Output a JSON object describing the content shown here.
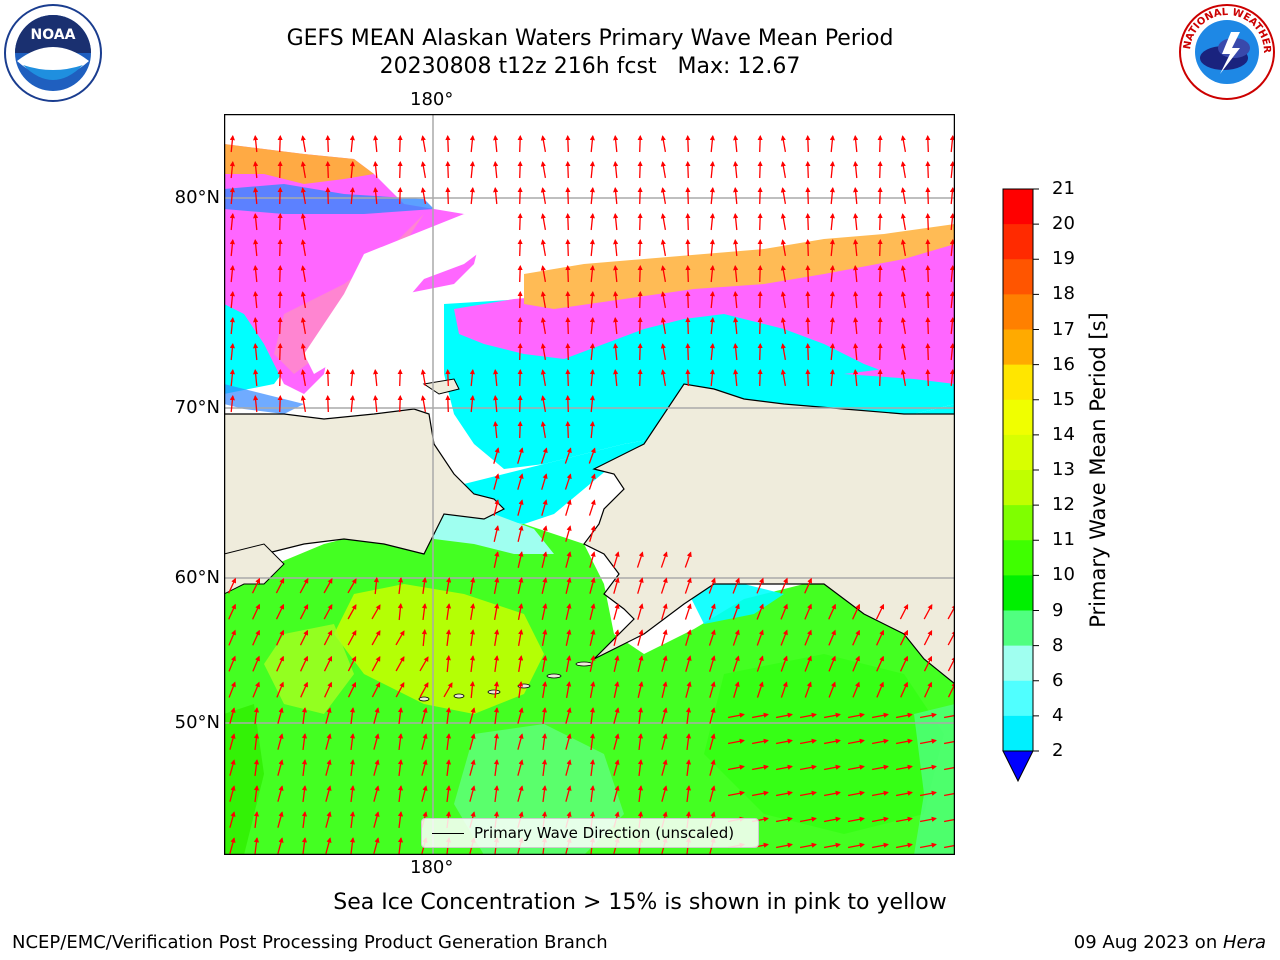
{
  "title": {
    "line1": "GEFS MEAN Alaskan Waters Primary Wave Mean Period",
    "line2": "20230808 t12z 216h fcst   Max: 12.67"
  },
  "logos": {
    "left": {
      "name": "noaa-logo",
      "text": "NOAA"
    },
    "right": {
      "name": "nws-logo",
      "text": "NATIONAL WEATHER SERVICE"
    }
  },
  "map": {
    "lon_label_top": "180°",
    "lon_label_bottom": "180°",
    "lat_labels": [
      "80°N",
      "70°N",
      "60°N",
      "50°N"
    ],
    "legend_label": "Primary Wave Direction (unscaled)"
  },
  "colorbar": {
    "label": "Primary Wave Mean Period [s]",
    "ticks": [
      "21",
      "20",
      "19",
      "18",
      "17",
      "16",
      "15",
      "14",
      "13",
      "12",
      "11",
      "10",
      "9",
      "8",
      "6",
      "4",
      "2"
    ],
    "colors": [
      "#ff0000",
      "#ff2a00",
      "#ff5500",
      "#ff8000",
      "#ffaa00",
      "#ffe600",
      "#f0ff00",
      "#d8ff00",
      "#c0ff00",
      "#7fff00",
      "#3fff00",
      "#00f000",
      "#50ff80",
      "#a0fff0",
      "#50ffff",
      "#00f0ff",
      "#0080ff"
    ],
    "under_color": "#0000ff",
    "extend": "min"
  },
  "colors": {
    "land": "#efecdc",
    "ice_low": "#ff66ff",
    "ice_mid": "#ff88cc",
    "ice_high": "#ffcc44",
    "wave_cyan": "#00ffff",
    "wave_green": "#44ff22",
    "wave_yellow": "#c8ff00",
    "arrow": "#ff0000"
  },
  "footer": {
    "note": "Sea Ice Concentration > 15% is shown in pink to yellow",
    "credit": "NCEP/EMC/Verification Post Processing Product Generation Branch",
    "date": "09 Aug 2023 on ",
    "host": "Hera"
  }
}
